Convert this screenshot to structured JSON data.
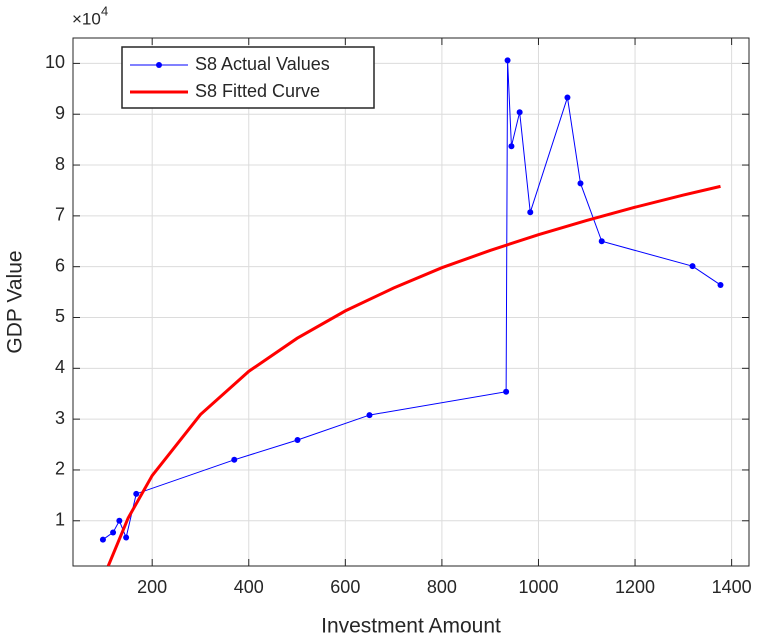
{
  "chart_data": {
    "type": "line",
    "x_label": "Investment Amount",
    "y_label": "GDP Value",
    "y_multiplier": "×10",
    "y_multiplier_exp": "4",
    "xlim": [
      36,
      1436
    ],
    "ylim": [
      1100,
      105000
    ],
    "xticks": [
      200,
      400,
      600,
      800,
      1000,
      1200,
      1400
    ],
    "yticks": [
      {
        "value": 10000,
        "label": "1"
      },
      {
        "value": 20000,
        "label": "2"
      },
      {
        "value": 30000,
        "label": "3"
      },
      {
        "value": 40000,
        "label": "4"
      },
      {
        "value": 50000,
        "label": "5"
      },
      {
        "value": 60000,
        "label": "6"
      },
      {
        "value": 70000,
        "label": "7"
      },
      {
        "value": 80000,
        "label": "8"
      },
      {
        "value": 90000,
        "label": "9"
      },
      {
        "value": 100000,
        "label": "10"
      }
    ],
    "grid": true,
    "legend": "top-left",
    "series": [
      {
        "name": "S8 Actual Values",
        "color": "#0000ff",
        "markers": true,
        "x": [
          98,
          119,
          132,
          146,
          167,
          370,
          501,
          650,
          933,
          936,
          944,
          961,
          983,
          1060,
          1087,
          1131,
          1319,
          1377
        ],
        "values": [
          6300,
          7700,
          10000,
          6700,
          15300,
          22000,
          25900,
          30800,
          35400,
          100600,
          83700,
          90400,
          70700,
          93300,
          76400,
          65000,
          60100,
          56400
        ]
      },
      {
        "name": "S8 Fitted Curve",
        "color": "#ff0000",
        "markers": false,
        "x": [
          109,
          150,
          200,
          300,
          400,
          500,
          600,
          700,
          800,
          900,
          1000,
          1100,
          1200,
          1300,
          1377
        ],
        "values": [
          1100,
          10500,
          18900,
          30900,
          39400,
          45900,
          51300,
          55800,
          59800,
          63200,
          66300,
          69100,
          71700,
          74100,
          75800
        ]
      }
    ]
  }
}
